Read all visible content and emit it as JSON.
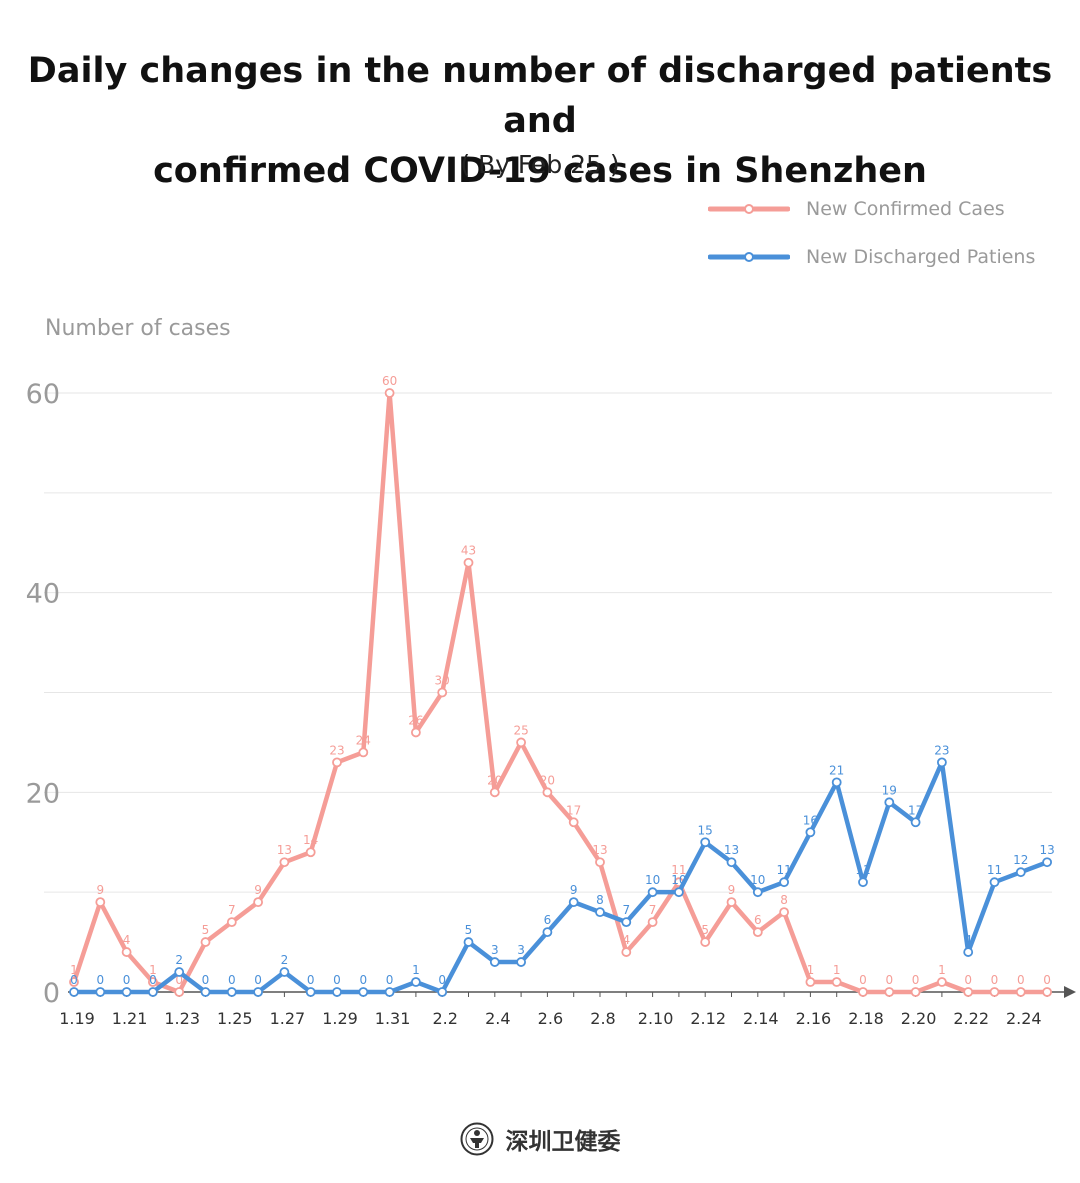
{
  "colors": {
    "confirmed": "#f59d97",
    "discharged": "#4a90d9",
    "grid": "#e6e6e6",
    "axis": "#555555",
    "tick": "#9a9a9a"
  },
  "footer": {
    "label": "深圳卫健委",
    "logo_icon": "health-commission-seal-icon"
  },
  "chart_data": {
    "type": "line",
    "title": "Daily changes in the number of discharged patients and confirmed COVID-19 cases in Shenzhen",
    "subtitle": "( By Feb.25 )",
    "xlabel": "",
    "ylabel": "Number of cases",
    "ylim": [
      0,
      60
    ],
    "y_ticks": [
      "0",
      "20",
      "40",
      "60"
    ],
    "x_tick_labels": [
      "1.19",
      "1.21",
      "1.23",
      "1.25",
      "1.27",
      "1.29",
      "1.31",
      "2.2",
      "2.4",
      "2.6",
      "2.8",
      "2.10",
      "2.12",
      "2.14",
      "2.16",
      "2.18",
      "2.20",
      "2.22",
      "2.24"
    ],
    "x": [
      "1.19",
      "1.20",
      "1.21",
      "1.22",
      "1.23",
      "1.24",
      "1.25",
      "1.26",
      "1.27",
      "1.28",
      "1.29",
      "1.30",
      "1.31",
      "2.1",
      "2.2",
      "2.3",
      "2.4",
      "2.5",
      "2.6",
      "2.7",
      "2.8",
      "2.9",
      "2.10",
      "2.11",
      "2.12",
      "2.13",
      "2.14",
      "2.15",
      "2.16",
      "2.17",
      "2.18",
      "2.19",
      "2.20",
      "2.21",
      "2.22",
      "2.23",
      "2.24",
      "2.25"
    ],
    "grid": true,
    "legend_position": "top-right",
    "series": [
      {
        "name": "New Confirmed Caes",
        "values": [
          1,
          9,
          4,
          1,
          0,
          5,
          7,
          9,
          13,
          14,
          23,
          24,
          60,
          26,
          30,
          43,
          20,
          25,
          20,
          17,
          13,
          4,
          7,
          11,
          5,
          9,
          6,
          8,
          1,
          1,
          0,
          0,
          0,
          1,
          0,
          0,
          0,
          0
        ]
      },
      {
        "name": "New Discharged Patiens",
        "values": [
          0,
          0,
          0,
          0,
          2,
          0,
          0,
          0,
          2,
          0,
          0,
          0,
          0,
          1,
          0,
          5,
          3,
          3,
          6,
          9,
          8,
          7,
          10,
          10,
          15,
          13,
          10,
          11,
          16,
          21,
          11,
          19,
          17,
          23,
          4,
          11,
          12,
          13
        ]
      }
    ]
  }
}
